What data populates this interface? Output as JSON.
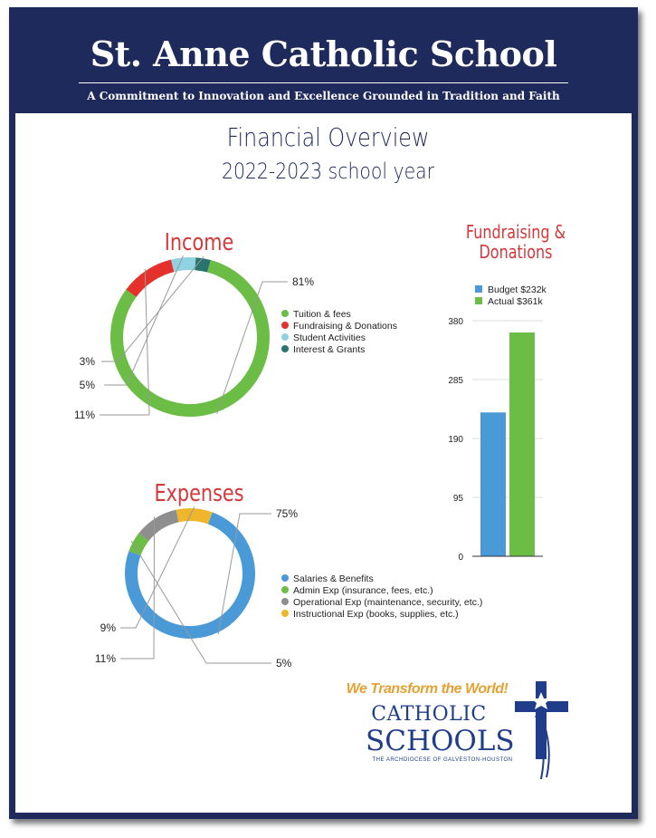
{
  "header": {
    "school_name": "St. Anne Catholic School",
    "tagline": "A Commitment to Innovation and Excellence Grounded in Tradition and Faith"
  },
  "title": {
    "main": "Financial Overview",
    "sub": "2022-2023 school year"
  },
  "chart_data": [
    {
      "type": "pie",
      "title": "Income",
      "style": "donut",
      "categories": [
        "Tuition & fees",
        "Fundraising & Donations",
        "Student Activities",
        "Interest & Grants"
      ],
      "values": [
        81,
        11,
        5,
        3
      ],
      "labels": [
        "81%",
        "11%",
        "5%",
        "3%"
      ],
      "colors": [
        "#6cbd45",
        "#e4312b",
        "#8fd3e3",
        "#2a7470"
      ],
      "legend": "right"
    },
    {
      "type": "pie",
      "title": "Expenses",
      "style": "donut",
      "categories": [
        "Salaries & Benefits",
        "Admin Exp (insurance, fees, etc.)",
        "Operational Exp (maintenance, security, etc.)",
        "Instructional Exp (books, supplies, etc.)"
      ],
      "values": [
        75,
        5,
        11,
        9
      ],
      "labels": [
        "75%",
        "5%",
        "11%",
        "9%"
      ],
      "colors": [
        "#4a9ad8",
        "#6cbd45",
        "#8e8e8e",
        "#f0b62b"
      ],
      "legend": "right"
    },
    {
      "type": "bar",
      "title": "Fundraising & Donations",
      "series": [
        {
          "name": "Budget $232k",
          "values": [
            232
          ],
          "color": "#4a9ad8"
        },
        {
          "name": "Actual $361k",
          "values": [
            361
          ],
          "color": "#6cbd45"
        }
      ],
      "categories": [
        ""
      ],
      "yticks": [
        "0",
        "95",
        "190",
        "285",
        "380"
      ],
      "ylim": [
        0,
        380
      ],
      "grid": true,
      "legend": "top"
    }
  ],
  "logo": {
    "tagline": "We Transform the World!",
    "line1": "CATHOLIC",
    "line2": "SCHOOLS",
    "line3": "THE ARCHDIOCESE OF GALVESTON-HOUSTON"
  }
}
